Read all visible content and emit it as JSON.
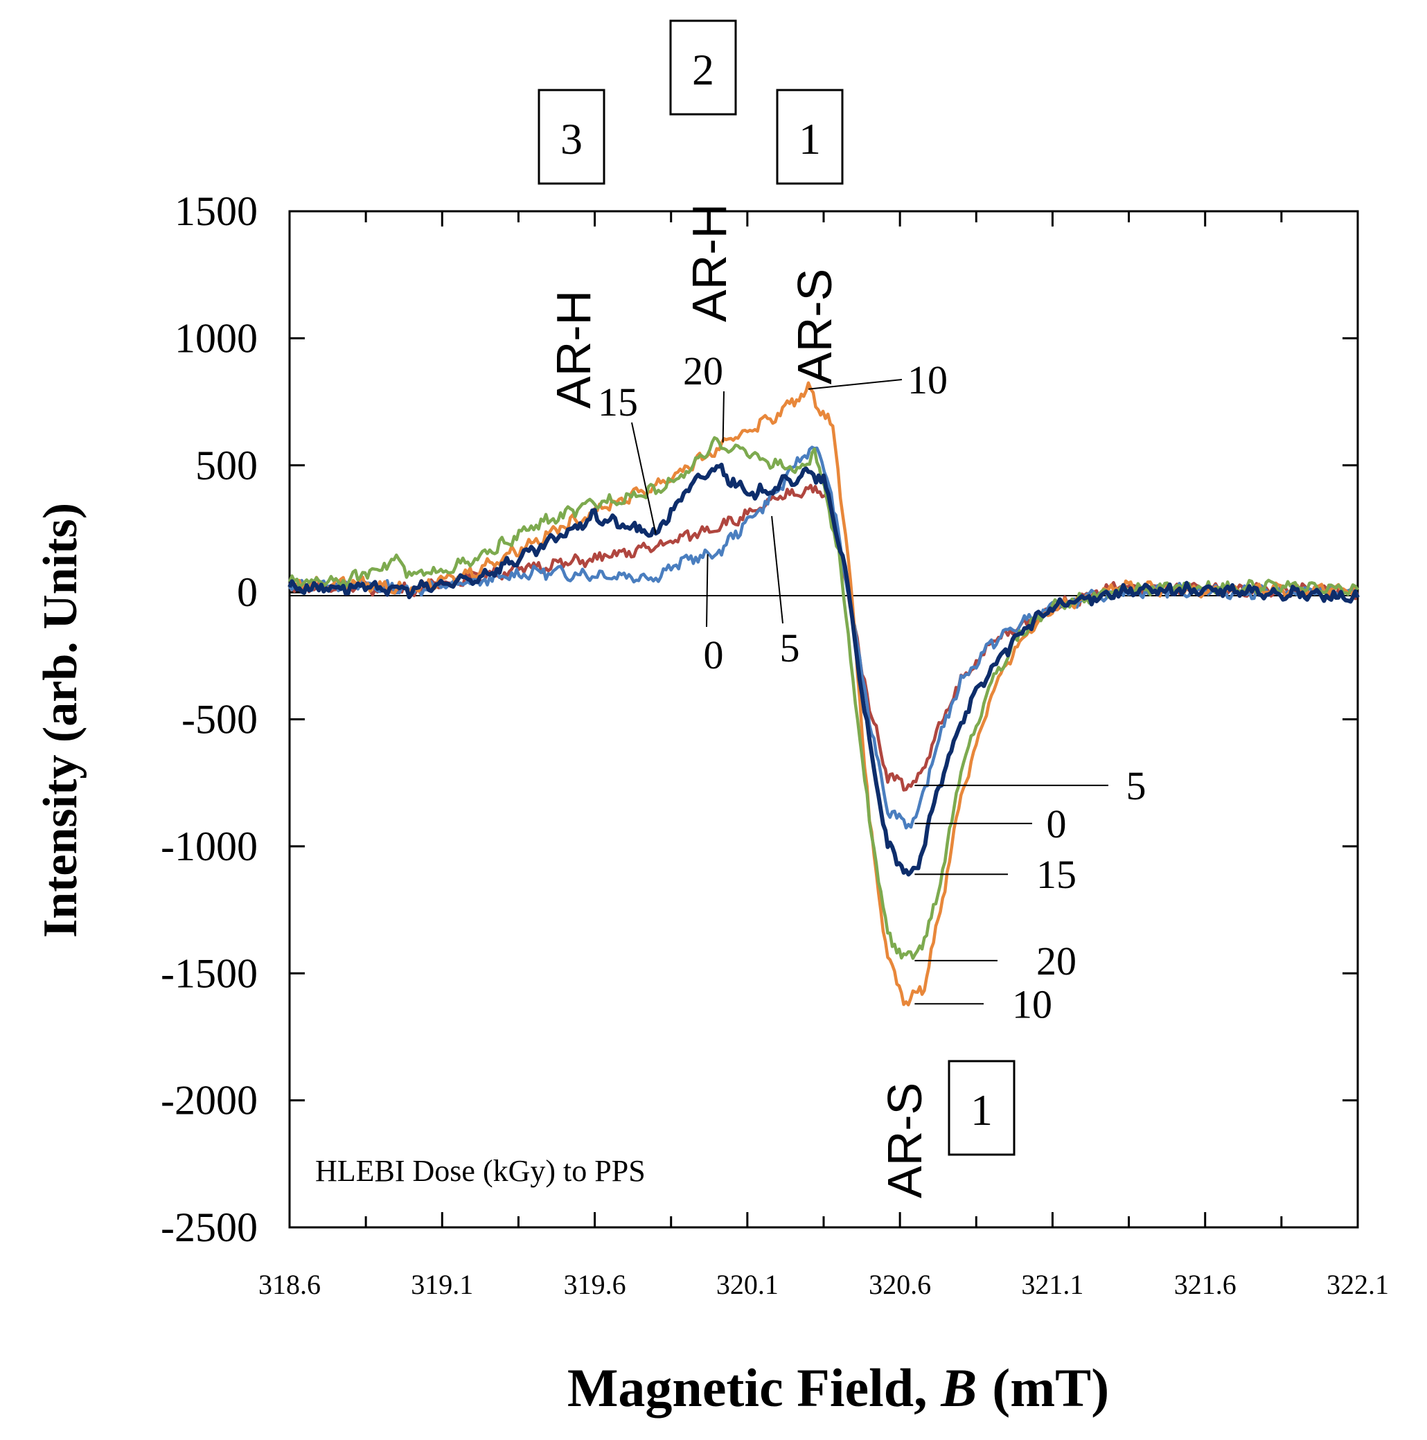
{
  "chart_data": {
    "type": "line",
    "xlabel_main": "Magnetic Field, ",
    "xlabel_var": "B",
    "xlabel_unit": "(mT)",
    "ylabel": "Intensity (arb. Units)",
    "xlim": [
      318.6,
      322.1
    ],
    "ylim": [
      -2500,
      1500
    ],
    "xticks": [
      "318.6",
      "319.1",
      "319.6",
      "320.1",
      "320.6",
      "321.1",
      "321.6",
      "322.1"
    ],
    "yticks": [
      "1500",
      "1000",
      "500",
      "0",
      "-500",
      "-1000",
      "-1500",
      "-2000",
      "-2500"
    ],
    "note": "HLEBI Dose (kGy) to PPS",
    "series": [
      {
        "name": "0",
        "color": "#4a7ebf",
        "x": [
          318.6,
          318.8,
          319.0,
          319.2,
          319.4,
          319.6,
          319.8,
          319.9,
          320.0,
          320.1,
          320.2,
          320.28,
          320.32,
          320.36,
          320.42,
          320.5,
          320.56,
          320.62,
          320.66,
          320.72,
          320.8,
          320.9,
          321.0,
          321.1,
          321.3,
          321.5,
          321.8,
          322.1
        ],
        "y": [
          20,
          30,
          10,
          40,
          80,
          70,
          60,
          130,
          150,
          280,
          400,
          540,
          570,
          470,
          80,
          -500,
          -850,
          -910,
          -880,
          -600,
          -350,
          -200,
          -120,
          -60,
          0,
          10,
          0,
          0
        ]
      },
      {
        "name": "5",
        "color": "#b0463f",
        "x": [
          318.6,
          318.8,
          319.0,
          319.2,
          319.4,
          319.6,
          319.8,
          320.0,
          320.1,
          320.2,
          320.3,
          320.36,
          320.42,
          320.5,
          320.56,
          320.62,
          320.66,
          320.72,
          320.8,
          320.9,
          321.0,
          321.1,
          321.3,
          321.5,
          321.8,
          322.1
        ],
        "y": [
          20,
          20,
          10,
          60,
          100,
          130,
          180,
          260,
          300,
          370,
          410,
          380,
          60,
          -450,
          -720,
          -760,
          -740,
          -560,
          -350,
          -200,
          -130,
          -60,
          20,
          10,
          10,
          0
        ]
      },
      {
        "name": "10",
        "color": "#e8873a",
        "x": [
          318.6,
          318.8,
          319.0,
          319.2,
          319.4,
          319.6,
          319.8,
          320.0,
          320.1,
          320.2,
          320.3,
          320.38,
          320.43,
          320.5,
          320.56,
          320.62,
          320.68,
          320.74,
          320.8,
          320.9,
          321.0,
          321.1,
          321.3,
          321.5,
          321.8,
          322.1
        ],
        "y": [
          30,
          40,
          10,
          80,
          200,
          320,
          420,
          560,
          640,
          700,
          800,
          650,
          150,
          -900,
          -1450,
          -1620,
          -1550,
          -1200,
          -800,
          -400,
          -180,
          -60,
          20,
          10,
          10,
          10
        ]
      },
      {
        "name": "15",
        "color": "#0d2d6b",
        "x": [
          318.6,
          318.8,
          319.0,
          319.2,
          319.4,
          319.6,
          319.7,
          319.8,
          319.9,
          320.0,
          320.1,
          320.2,
          320.3,
          320.35,
          320.42,
          320.5,
          320.56,
          320.62,
          320.66,
          320.72,
          320.8,
          320.9,
          321.0,
          321.1,
          321.3,
          321.5,
          321.8,
          322.1
        ],
        "y": [
          20,
          20,
          10,
          50,
          160,
          300,
          260,
          230,
          400,
          500,
          380,
          420,
          470,
          440,
          100,
          -600,
          -1000,
          -1110,
          -1080,
          -800,
          -500,
          -300,
          -150,
          -60,
          0,
          10,
          0,
          -20
        ]
      },
      {
        "name": "20",
        "color": "#7daa4f",
        "x": [
          318.6,
          318.8,
          318.95,
          319.0,
          319.2,
          319.4,
          319.6,
          319.8,
          319.9,
          320.0,
          320.1,
          320.2,
          320.28,
          320.32,
          320.4,
          320.5,
          320.56,
          320.62,
          320.68,
          320.74,
          320.8,
          320.9,
          321.0,
          321.1,
          321.3,
          321.5,
          321.8,
          322.1
        ],
        "y": [
          40,
          50,
          130,
          60,
          120,
          260,
          350,
          400,
          470,
          590,
          550,
          500,
          480,
          560,
          150,
          -900,
          -1350,
          -1450,
          -1380,
          -1100,
          -700,
          -350,
          -150,
          -60,
          10,
          20,
          20,
          10
        ]
      }
    ],
    "peak_labels": [
      {
        "text": "10",
        "x": 320.3,
        "y": 800
      },
      {
        "text": "20",
        "x": 320.02,
        "y": 590
      },
      {
        "text": "15",
        "x": 319.8,
        "y": 230
      },
      {
        "text": "0",
        "x": 319.97,
        "y": 150
      },
      {
        "text": "5",
        "x": 320.18,
        "y": 300
      }
    ],
    "trough_labels": [
      {
        "text": "5",
        "x": 320.63,
        "y": -760
      },
      {
        "text": "0",
        "x": 320.63,
        "y": -910
      },
      {
        "text": "15",
        "x": 320.63,
        "y": -1110
      },
      {
        "text": "20",
        "x": 320.63,
        "y": -1450
      },
      {
        "text": "10",
        "x": 320.63,
        "y": -1620
      }
    ],
    "annotations": [
      {
        "text": "AR-H",
        "box": "3"
      },
      {
        "text": "AR-H",
        "box": "2"
      },
      {
        "text": "AR-S",
        "box": "1"
      },
      {
        "text": "AR-S",
        "box": "1"
      }
    ]
  }
}
